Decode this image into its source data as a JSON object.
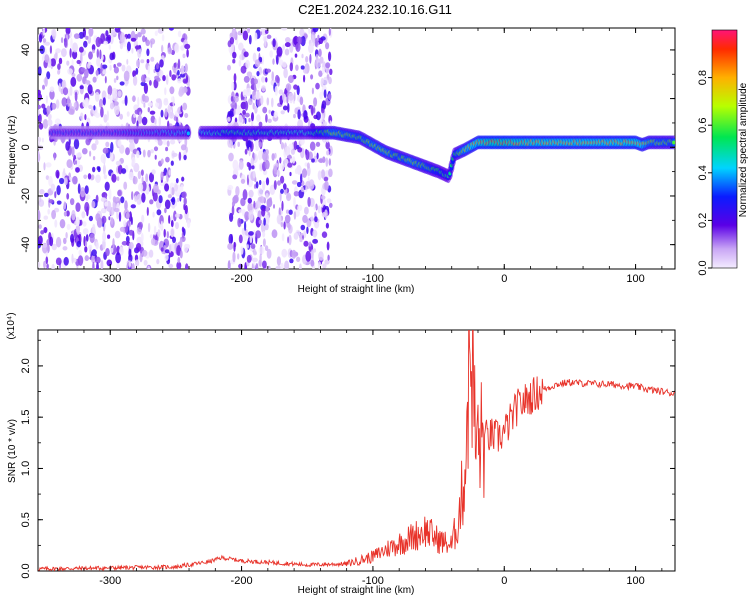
{
  "figure": {
    "title": "C2E1.2024.232.10.16.G11"
  },
  "chart_data": [
    {
      "type": "heatmap",
      "xlabel": "Height of straight line (km)",
      "ylabel": "Frequency (Hz)",
      "xlim": [
        -355,
        130
      ],
      "ylim": [
        -50,
        49
      ],
      "xticks": [
        -300,
        -200,
        -100,
        0,
        100
      ],
      "yticks": [
        -40,
        -20,
        0,
        20,
        40
      ],
      "colorbar": {
        "label": "Normalized spectral amplitude",
        "range": [
          0,
          1
        ],
        "ticks": [
          0.0,
          0.2,
          0.4,
          0.6,
          0.8
        ],
        "tick_labels": [
          "0.0",
          "0.2",
          "0.4",
          "0.6",
          "0.8"
        ]
      },
      "noise_regions_km": [
        [
          -355,
          -240
        ],
        [
          -210,
          -132
        ]
      ],
      "signal_trace": {
        "x": [
          -345,
          -300,
          -240,
          -210,
          -150,
          -130,
          -110,
          -100,
          -90,
          -80,
          -70,
          -60,
          -50,
          -42,
          -38,
          -30,
          -20,
          -10,
          0,
          20,
          50,
          80,
          100,
          105,
          110,
          130
        ],
        "y": [
          6,
          6,
          6,
          6,
          6,
          6,
          4,
          1,
          -2,
          -4,
          -6,
          -8,
          -10,
          -12,
          -3,
          -1,
          2,
          2,
          2,
          2,
          2,
          2,
          2,
          1,
          2,
          2
        ],
        "amplitude": [
          0.3,
          0.3,
          0.4,
          0.5,
          0.45,
          0.65,
          0.6,
          0.65,
          0.65,
          0.6,
          0.65,
          0.6,
          0.55,
          0.5,
          0.55,
          0.7,
          0.8,
          0.85,
          0.85,
          0.8,
          0.78,
          0.78,
          0.8,
          0.75,
          0.65,
          0.6
        ]
      }
    },
    {
      "type": "line",
      "xlabel": "Height of straight line (km)",
      "ylabel": "SNR (10 * v/v)",
      "y_multiplier": "(x10⁴)",
      "xlim": [
        -355,
        130
      ],
      "ylim": [
        0,
        2.35
      ],
      "xticks": [
        -300,
        -200,
        -100,
        0,
        100
      ],
      "yticks": [
        0.0,
        0.5,
        1.0,
        1.5,
        2.0
      ],
      "ytick_labels": [
        "0.0",
        "0.5",
        "1.0",
        "1.5",
        "2.0"
      ],
      "series": [
        {
          "color": "#e8332a",
          "x": [
            -355,
            -300,
            -250,
            -225,
            -215,
            -200,
            -150,
            -120,
            -100,
            -90,
            -80,
            -70,
            -60,
            -50,
            -40,
            -35,
            -30,
            -28,
            -25,
            -22,
            -20,
            -15,
            -10,
            -5,
            0,
            10,
            20,
            30,
            40,
            50,
            60,
            80,
            100,
            110,
            120,
            130
          ],
          "y": [
            0.02,
            0.03,
            0.04,
            0.09,
            0.13,
            0.1,
            0.06,
            0.07,
            0.14,
            0.21,
            0.27,
            0.33,
            0.4,
            0.3,
            0.25,
            0.5,
            0.95,
            1.65,
            2.35,
            1.25,
            1.25,
            1.3,
            1.32,
            1.3,
            1.35,
            1.6,
            1.7,
            1.77,
            1.82,
            1.84,
            1.83,
            1.82,
            1.8,
            1.77,
            1.75,
            1.73
          ]
        }
      ]
    }
  ]
}
